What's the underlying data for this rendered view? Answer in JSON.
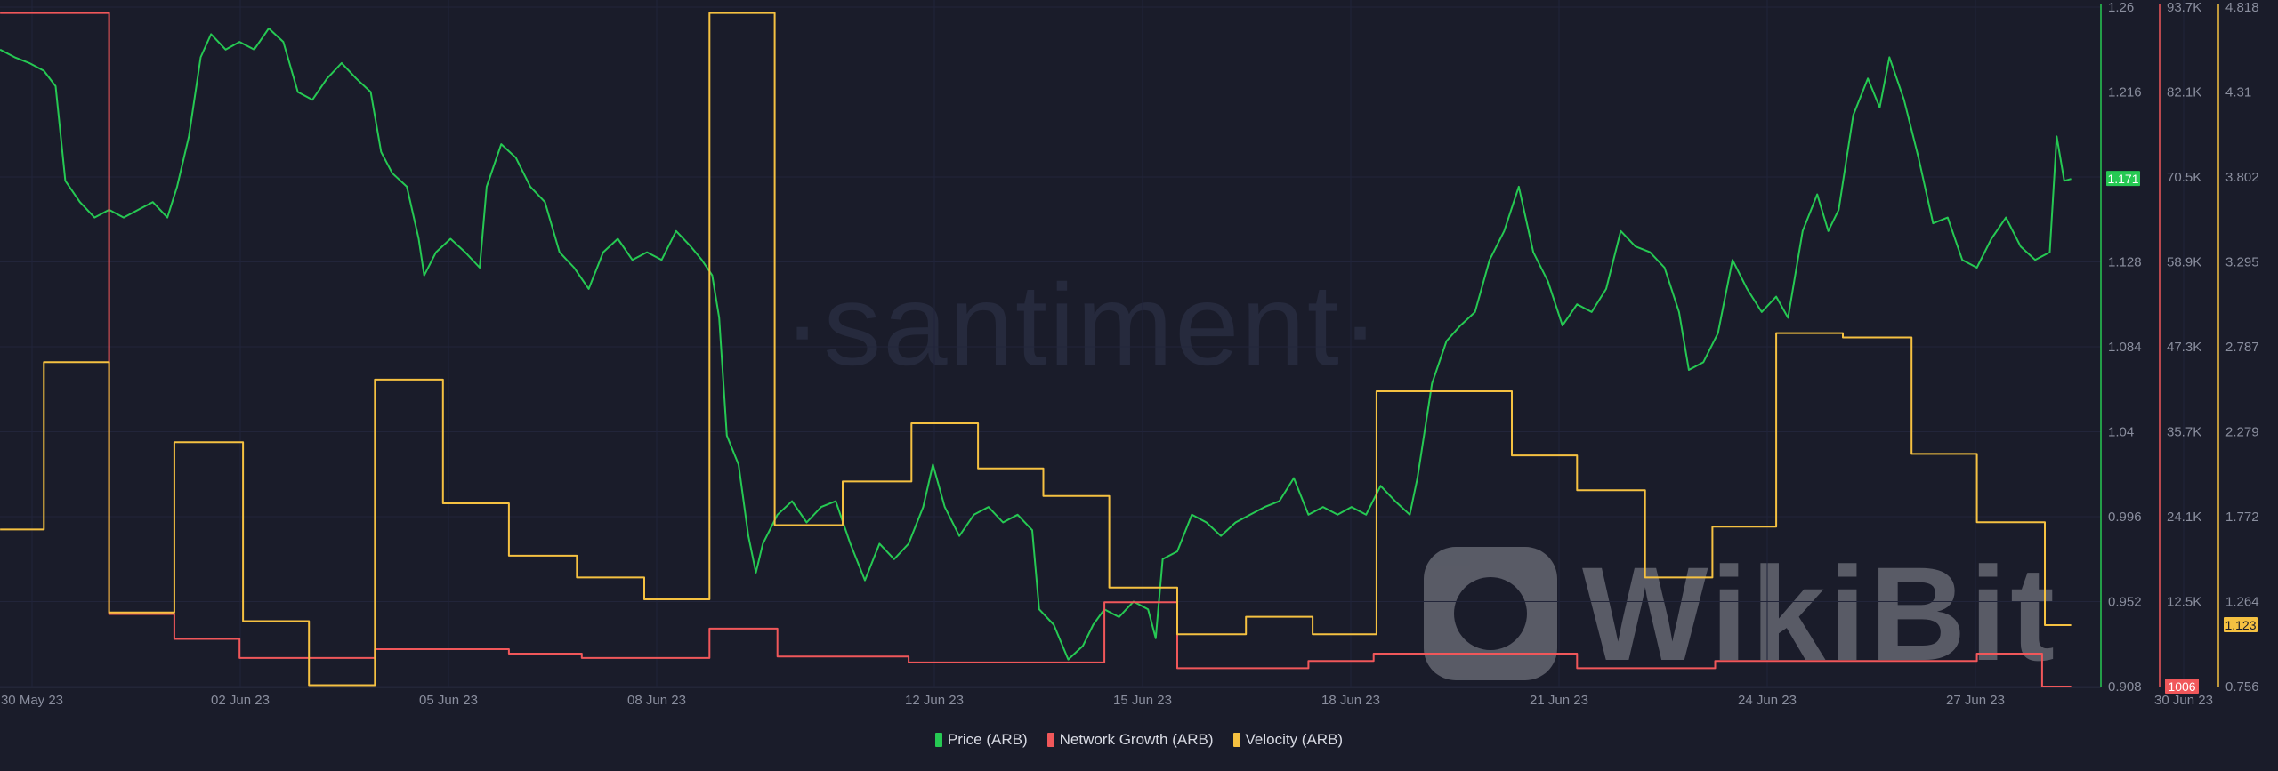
{
  "watermarks": {
    "santiment": "·santiment·",
    "wikibit": "WikiBit"
  },
  "colors": {
    "price": "#26c953",
    "network": "#f0575a",
    "velocity": "#f5c141",
    "background": "#1a1c2a",
    "tick": "#8a8e9e"
  },
  "chart_data": {
    "type": "line",
    "title": "",
    "x_unit": "days since 30 May 23",
    "x_ticks": [
      {
        "t": 0,
        "label": "30 May 23"
      },
      {
        "t": 3,
        "label": "02 Jun 23"
      },
      {
        "t": 6,
        "label": "05 Jun 23"
      },
      {
        "t": 9,
        "label": "08 Jun 23"
      },
      {
        "t": 13,
        "label": "12 Jun 23"
      },
      {
        "t": 16,
        "label": "15 Jun 23"
      },
      {
        "t": 19,
        "label": "18 Jun 23"
      },
      {
        "t": 22,
        "label": "21 Jun 23"
      },
      {
        "t": 25,
        "label": "24 Jun 23"
      },
      {
        "t": 28,
        "label": "27 Jun 23"
      },
      {
        "t": 31,
        "label": "30 Jun 23"
      }
    ],
    "xlim": [
      -0.46,
      30.8
    ],
    "grid": true,
    "legend_position": "bottom-center",
    "series": [
      {
        "name": "Price (ARB)",
        "key": "price",
        "style": "line",
        "ylim": [
          0.908,
          1.26
        ],
        "y_ticks": [
          "1.26",
          "1.216",
          "1.171",
          "1.128",
          "1.084",
          "1.04",
          "0.996",
          "0.952",
          "0.908"
        ],
        "tick_values": [
          1.26,
          1.216,
          1.172,
          1.128,
          1.084,
          1.04,
          0.996,
          0.952,
          0.908
        ],
        "last_label": "1.171",
        "last_value": 1.171,
        "points": [
          [
            -0.46,
            1.238
          ],
          [
            -0.25,
            1.234
          ],
          [
            -0.04,
            1.231
          ],
          [
            0.17,
            1.227
          ],
          [
            0.34,
            1.219
          ],
          [
            0.48,
            1.17
          ],
          [
            0.69,
            1.159
          ],
          [
            0.9,
            1.151
          ],
          [
            1.11,
            1.155
          ],
          [
            1.32,
            1.151
          ],
          [
            1.53,
            1.155
          ],
          [
            1.74,
            1.159
          ],
          [
            1.95,
            1.151
          ],
          [
            2.09,
            1.167
          ],
          [
            2.26,
            1.193
          ],
          [
            2.43,
            1.234
          ],
          [
            2.58,
            1.246
          ],
          [
            2.79,
            1.238
          ],
          [
            2.99,
            1.242
          ],
          [
            3.2,
            1.238
          ],
          [
            3.41,
            1.249
          ],
          [
            3.62,
            1.242
          ],
          [
            3.83,
            1.216
          ],
          [
            4.04,
            1.212
          ],
          [
            4.25,
            1.223
          ],
          [
            4.46,
            1.231
          ],
          [
            4.67,
            1.223
          ],
          [
            4.88,
            1.216
          ],
          [
            5.03,
            1.185
          ],
          [
            5.19,
            1.174
          ],
          [
            5.4,
            1.167
          ],
          [
            5.57,
            1.14
          ],
          [
            5.65,
            1.121
          ],
          [
            5.82,
            1.133
          ],
          [
            6.03,
            1.14
          ],
          [
            6.24,
            1.133
          ],
          [
            6.45,
            1.125
          ],
          [
            6.55,
            1.167
          ],
          [
            6.76,
            1.189
          ],
          [
            6.97,
            1.182
          ],
          [
            7.18,
            1.167
          ],
          [
            7.39,
            1.159
          ],
          [
            7.6,
            1.133
          ],
          [
            7.81,
            1.125
          ],
          [
            8.02,
            1.114
          ],
          [
            8.23,
            1.133
          ],
          [
            8.44,
            1.14
          ],
          [
            8.65,
            1.129
          ],
          [
            8.86,
            1.133
          ],
          [
            9.07,
            1.129
          ],
          [
            9.28,
            1.144
          ],
          [
            9.49,
            1.136
          ],
          [
            9.65,
            1.129
          ],
          [
            9.8,
            1.121
          ],
          [
            9.9,
            1.099
          ],
          [
            10.01,
            1.038
          ],
          [
            10.18,
            1.023
          ],
          [
            10.32,
            0.986
          ],
          [
            10.43,
            0.967
          ],
          [
            10.53,
            0.982
          ],
          [
            10.74,
            0.997
          ],
          [
            10.95,
            1.004
          ],
          [
            11.16,
            0.993
          ],
          [
            11.37,
            1.001
          ],
          [
            11.58,
            1.004
          ],
          [
            11.79,
            0.982
          ],
          [
            12.0,
            0.963
          ],
          [
            12.21,
            0.982
          ],
          [
            12.42,
            0.974
          ],
          [
            12.63,
            0.982
          ],
          [
            12.84,
            1.001
          ],
          [
            12.98,
            1.023
          ],
          [
            13.15,
            1.001
          ],
          [
            13.36,
            0.986
          ],
          [
            13.57,
            0.997
          ],
          [
            13.78,
            1.001
          ],
          [
            13.99,
            0.993
          ],
          [
            14.2,
            0.997
          ],
          [
            14.41,
            0.989
          ],
          [
            14.51,
            0.948
          ],
          [
            14.72,
            0.94
          ],
          [
            14.93,
            0.922
          ],
          [
            15.14,
            0.929
          ],
          [
            15.29,
            0.94
          ],
          [
            15.45,
            0.948
          ],
          [
            15.66,
            0.944
          ],
          [
            15.87,
            0.952
          ],
          [
            16.08,
            0.948
          ],
          [
            16.19,
            0.933
          ],
          [
            16.29,
            0.974
          ],
          [
            16.5,
            0.978
          ],
          [
            16.71,
            0.997
          ],
          [
            16.92,
            0.993
          ],
          [
            17.13,
            0.986
          ],
          [
            17.34,
            0.993
          ],
          [
            17.55,
            0.997
          ],
          [
            17.76,
            1.001
          ],
          [
            17.97,
            1.004
          ],
          [
            18.18,
            1.016
          ],
          [
            18.39,
            0.997
          ],
          [
            18.6,
            1.001
          ],
          [
            18.81,
            0.997
          ],
          [
            19.01,
            1.001
          ],
          [
            19.22,
            0.997
          ],
          [
            19.43,
            1.012
          ],
          [
            19.64,
            1.004
          ],
          [
            19.85,
            0.997
          ],
          [
            19.96,
            1.016
          ],
          [
            20.17,
            1.065
          ],
          [
            20.38,
            1.087
          ],
          [
            20.58,
            1.095
          ],
          [
            20.79,
            1.102
          ],
          [
            21.0,
            1.129
          ],
          [
            21.21,
            1.144
          ],
          [
            21.42,
            1.167
          ],
          [
            21.63,
            1.133
          ],
          [
            21.84,
            1.118
          ],
          [
            22.05,
            1.095
          ],
          [
            22.26,
            1.106
          ],
          [
            22.47,
            1.102
          ],
          [
            22.68,
            1.114
          ],
          [
            22.89,
            1.144
          ],
          [
            23.1,
            1.136
          ],
          [
            23.31,
            1.133
          ],
          [
            23.52,
            1.125
          ],
          [
            23.73,
            1.102
          ],
          [
            23.87,
            1.072
          ],
          [
            24.08,
            1.076
          ],
          [
            24.29,
            1.091
          ],
          [
            24.5,
            1.129
          ],
          [
            24.71,
            1.114
          ],
          [
            24.92,
            1.102
          ],
          [
            25.13,
            1.11
          ],
          [
            25.3,
            1.099
          ],
          [
            25.51,
            1.144
          ],
          [
            25.72,
            1.163
          ],
          [
            25.88,
            1.144
          ],
          [
            26.03,
            1.155
          ],
          [
            26.24,
            1.204
          ],
          [
            26.45,
            1.223
          ],
          [
            26.62,
            1.208
          ],
          [
            26.76,
            1.234
          ],
          [
            26.97,
            1.212
          ],
          [
            27.18,
            1.182
          ],
          [
            27.39,
            1.148
          ],
          [
            27.6,
            1.151
          ],
          [
            27.81,
            1.129
          ],
          [
            28.02,
            1.125
          ],
          [
            28.23,
            1.14
          ],
          [
            28.44,
            1.151
          ],
          [
            28.65,
            1.136
          ],
          [
            28.86,
            1.129
          ],
          [
            29.07,
            1.133
          ],
          [
            29.17,
            1.193
          ],
          [
            29.28,
            1.17
          ],
          [
            29.38,
            1.171
          ]
        ]
      },
      {
        "name": "Network Growth (ARB)",
        "key": "network",
        "style": "step",
        "ylim": [
          1006,
          93700
        ],
        "y_ticks": [
          "93.7K",
          "82.1K",
          "70.5K",
          "58.9K",
          "47.3K",
          "35.7K",
          "24.1K",
          "12.5K",
          ""
        ],
        "last_label": "1006",
        "last_value": 1006,
        "steps": [
          [
            -0.46,
            92900
          ],
          [
            1.11,
            10900
          ],
          [
            2.05,
            7500
          ],
          [
            2.99,
            4900
          ],
          [
            4.94,
            6100
          ],
          [
            6.87,
            5500
          ],
          [
            7.92,
            4900
          ],
          [
            9.76,
            8900
          ],
          [
            10.74,
            5100
          ],
          [
            12.63,
            4300
          ],
          [
            15.45,
            12500
          ],
          [
            16.5,
            3500
          ],
          [
            18.39,
            4500
          ],
          [
            19.33,
            5500
          ],
          [
            22.26,
            3500
          ],
          [
            24.25,
            4500
          ],
          [
            28.02,
            5500
          ],
          [
            28.96,
            1006
          ]
        ],
        "end": 29.38
      },
      {
        "name": "Velocity (ARB)",
        "key": "velocity",
        "style": "step",
        "ylim": [
          0.756,
          4.818
        ],
        "y_ticks": [
          "4.818",
          "4.31",
          "3.802",
          "3.295",
          "2.787",
          "2.279",
          "1.772",
          "1.264",
          "0.756"
        ],
        "last_label": "1.123",
        "last_value": 1.123,
        "steps": [
          [
            -0.46,
            1.695
          ],
          [
            0.17,
            2.695
          ],
          [
            1.11,
            1.199
          ],
          [
            2.05,
            2.217
          ],
          [
            3.04,
            1.147
          ],
          [
            3.99,
            0.764
          ],
          [
            4.94,
            2.591
          ],
          [
            5.92,
            1.851
          ],
          [
            6.87,
            1.538
          ],
          [
            7.85,
            1.408
          ],
          [
            8.82,
            1.277
          ],
          [
            9.76,
            4.783
          ],
          [
            10.7,
            1.721
          ],
          [
            11.68,
            1.982
          ],
          [
            12.67,
            2.33
          ],
          [
            13.63,
            2.06
          ],
          [
            14.57,
            1.895
          ],
          [
            15.52,
            1.347
          ],
          [
            16.5,
            1.068
          ],
          [
            17.49,
            1.173
          ],
          [
            18.45,
            1.068
          ],
          [
            19.37,
            2.521
          ],
          [
            21.32,
            2.138
          ],
          [
            22.26,
            1.93
          ],
          [
            23.24,
            1.408
          ],
          [
            24.21,
            1.712
          ],
          [
            25.13,
            2.869
          ],
          [
            26.09,
            2.843
          ],
          [
            27.08,
            2.147
          ],
          [
            28.02,
            1.738
          ],
          [
            29.0,
            1.123
          ]
        ],
        "end": 29.38
      }
    ]
  }
}
